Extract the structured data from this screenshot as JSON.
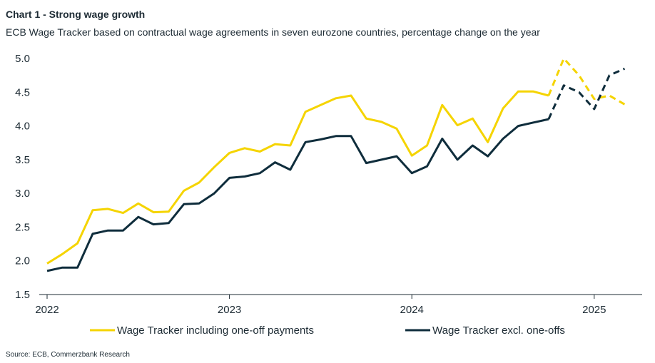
{
  "title": "Chart 1 - Strong wage growth",
  "subtitle": "ECB Wage Tracker based on contractual wage agreements in seven eurozone countries, percentage change on the year",
  "source": "Source: ECB, Commerzbank Research",
  "chart_data": {
    "type": "line",
    "title": "Chart 1 - Strong wage growth",
    "subtitle": "ECB Wage Tracker based on contractual wage agreements in seven eurozone countries, percentage change on the year",
    "x_ticks": [
      "2022",
      "2023",
      "2024",
      "2025"
    ],
    "y_ticks": [
      "1.5",
      "2.0",
      "2.5",
      "3.0",
      "3.5",
      "4.0",
      "4.5",
      "5.0"
    ],
    "ylim": [
      1.5,
      5.0
    ],
    "grid": false,
    "legend_position": "bottom",
    "x": [
      "2022-01",
      "2022-02",
      "2022-03",
      "2022-04",
      "2022-05",
      "2022-06",
      "2022-07",
      "2022-08",
      "2022-09",
      "2022-10",
      "2022-11",
      "2022-12",
      "2023-01",
      "2023-02",
      "2023-03",
      "2023-04",
      "2023-05",
      "2023-06",
      "2023-07",
      "2023-08",
      "2023-09",
      "2023-10",
      "2023-11",
      "2023-12",
      "2024-01",
      "2024-02",
      "2024-03",
      "2024-04",
      "2024-05",
      "2024-06",
      "2024-07",
      "2024-08",
      "2024-09",
      "2024-10",
      "2024-11",
      "2024-12",
      "2025-01",
      "2025-02",
      "2025-03",
      "2025-04"
    ],
    "series": [
      {
        "name": "Wage Tracker including one-off payments",
        "color": "#f5d400",
        "solid_until": "2024-10",
        "values": [
          1.96,
          2.1,
          2.26,
          2.75,
          2.77,
          2.71,
          2.85,
          2.72,
          2.73,
          3.04,
          3.16,
          3.39,
          3.6,
          3.67,
          3.62,
          3.73,
          3.71,
          4.21,
          4.31,
          4.41,
          4.45,
          4.11,
          4.06,
          3.96,
          3.56,
          3.71,
          4.31,
          4.01,
          4.11,
          3.76,
          4.26,
          4.51,
          4.51,
          4.45,
          5.0,
          4.75,
          4.4,
          4.45,
          4.32,
          null
        ]
      },
      {
        "name": "Wage Tracker excl. one-offs",
        "color": "#0f2d3c",
        "solid_until": "2024-10",
        "values": [
          1.85,
          1.9,
          1.9,
          2.4,
          2.45,
          2.45,
          2.65,
          2.54,
          2.56,
          2.84,
          2.85,
          3.0,
          3.23,
          3.25,
          3.3,
          3.46,
          3.35,
          3.76,
          3.8,
          3.85,
          3.85,
          3.45,
          3.5,
          3.55,
          3.3,
          3.4,
          3.81,
          3.5,
          3.71,
          3.55,
          3.81,
          4.0,
          4.05,
          4.1,
          4.6,
          4.5,
          4.25,
          4.75,
          4.85,
          null
        ]
      }
    ]
  }
}
